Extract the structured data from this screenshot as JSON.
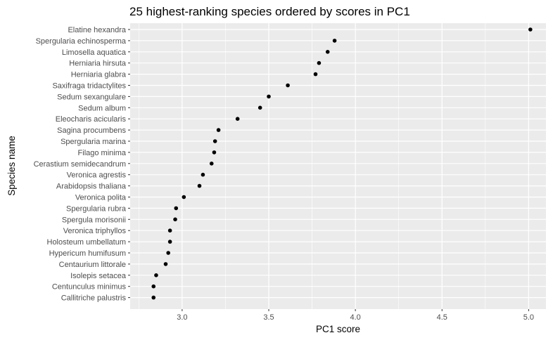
{
  "chart_data": {
    "type": "scatter",
    "title": "25 highest-ranking species ordered by scores in PC1",
    "xlabel": "PC1 score",
    "ylabel": "Species name",
    "xlim": [
      2.7,
      5.1
    ],
    "xticks": [
      3.0,
      3.5,
      4.0,
      4.5,
      5.0
    ],
    "xtick_labels": [
      "3.0",
      "3.5",
      "4.0",
      "4.5",
      "5.0"
    ],
    "grid": true,
    "legend": "none",
    "colors": {
      "panel": "#ebebeb",
      "grid": "#ffffff",
      "point": "#000000"
    },
    "points": [
      {
        "species": "Elatine hexandra",
        "x": 5.01
      },
      {
        "species": "Spergularia echinosperma",
        "x": 3.88
      },
      {
        "species": "Limosella aquatica",
        "x": 3.84
      },
      {
        "species": "Herniaria hirsuta",
        "x": 3.79
      },
      {
        "species": "Herniaria glabra",
        "x": 3.77
      },
      {
        "species": "Saxifraga tridactylites",
        "x": 3.61
      },
      {
        "species": "Sedum sexangulare",
        "x": 3.5
      },
      {
        "species": "Sedum album",
        "x": 3.45
      },
      {
        "species": "Eleocharis acicularis",
        "x": 3.32
      },
      {
        "species": "Sagina procumbens",
        "x": 3.21
      },
      {
        "species": "Spergularia marina",
        "x": 3.19
      },
      {
        "species": "Filago minima",
        "x": 3.185
      },
      {
        "species": "Cerastium semidecandrum",
        "x": 3.17
      },
      {
        "species": "Veronica agrestis",
        "x": 3.12
      },
      {
        "species": "Arabidopsis thaliana",
        "x": 3.1
      },
      {
        "species": "Veronica polita",
        "x": 3.01
      },
      {
        "species": "Spergularia rubra",
        "x": 2.965
      },
      {
        "species": "Spergula morisonii",
        "x": 2.96
      },
      {
        "species": "Veronica triphyllos",
        "x": 2.93
      },
      {
        "species": "Holosteum umbellatum",
        "x": 2.93
      },
      {
        "species": "Hypericum humifusum",
        "x": 2.92
      },
      {
        "species": "Centaurium littorale",
        "x": 2.905
      },
      {
        "species": "Isolepis setacea",
        "x": 2.85
      },
      {
        "species": "Centunculus minimus",
        "x": 2.835
      },
      {
        "species": "Callitriche palustris",
        "x": 2.835
      }
    ]
  }
}
